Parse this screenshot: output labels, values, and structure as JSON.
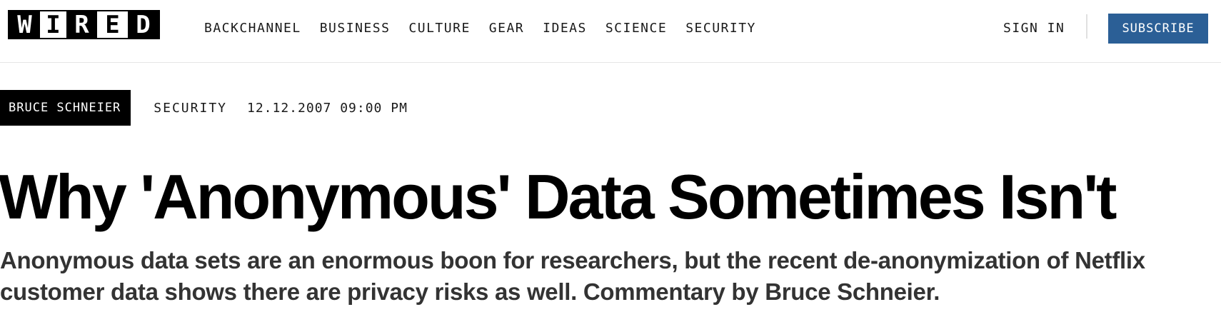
{
  "header": {
    "logo_letters": [
      "W",
      "I",
      "R",
      "E",
      "D"
    ],
    "nav": [
      {
        "label": "BACKCHANNEL"
      },
      {
        "label": "BUSINESS"
      },
      {
        "label": "CULTURE"
      },
      {
        "label": "GEAR"
      },
      {
        "label": "IDEAS"
      },
      {
        "label": "SCIENCE"
      },
      {
        "label": "SECURITY"
      }
    ],
    "sign_in_label": "SIGN IN",
    "subscribe_label": "SUBSCRIBE",
    "subscribe_color": "#2b5f96"
  },
  "article": {
    "author": "BRUCE SCHNEIER",
    "category": "SECURITY",
    "date": "12.12.2007 09:00 PM",
    "headline": "Why 'Anonymous' Data Sometimes Isn't",
    "dek": "Anonymous data sets are an enormous boon for researchers, but the recent de-anonymization of Netflix customer data shows there are privacy risks as well. Commentary by Bruce Schneier."
  }
}
